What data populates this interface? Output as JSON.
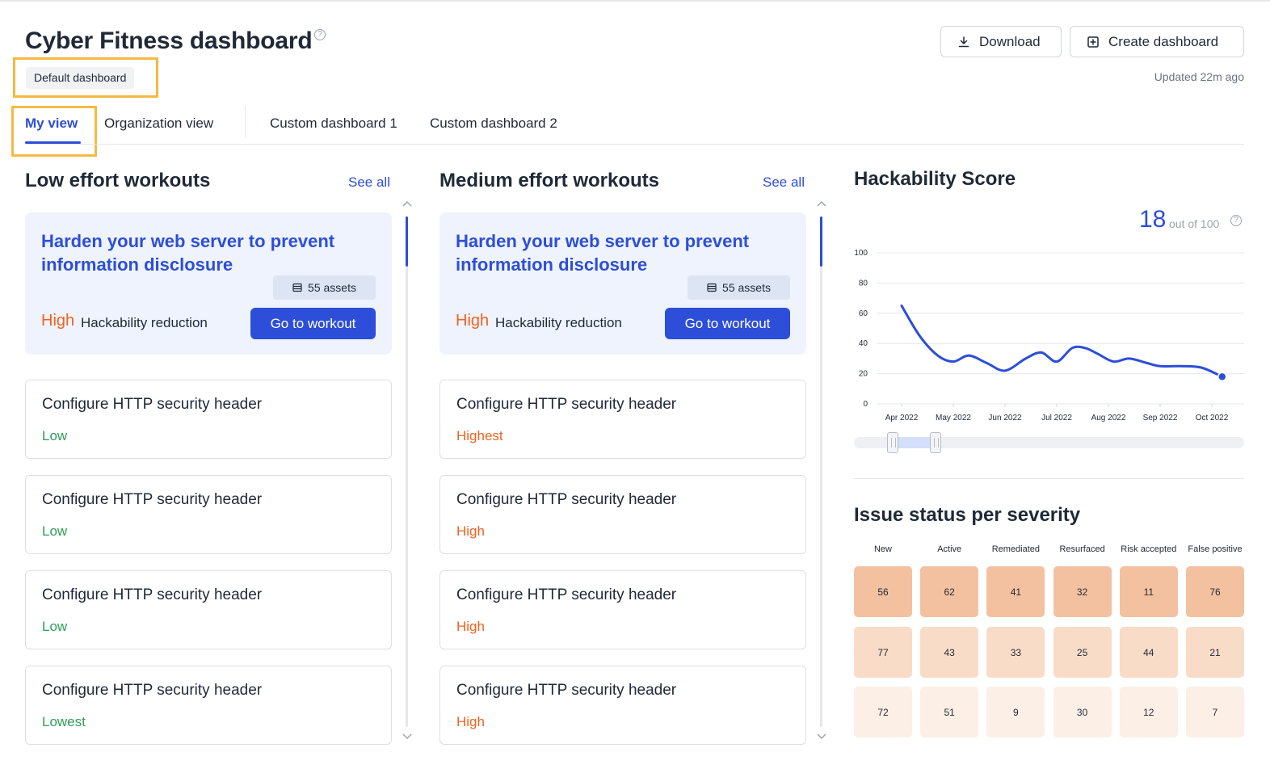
{
  "header": {
    "title": "Cyber Fitness dashboard",
    "badge": "Default dashboard",
    "download_label": "Download",
    "create_label": "Create dashboard",
    "updated": "Updated 22m ago"
  },
  "tabs": [
    {
      "label": "My view",
      "active": true
    },
    {
      "label": "Organization view",
      "active": false
    },
    {
      "label": "Custom dashboard 1",
      "active": false
    },
    {
      "label": "Custom dashboard 2",
      "active": false
    }
  ],
  "low_effort": {
    "title": "Low effort workouts",
    "see_all": "See all",
    "featured": {
      "title": "Harden your web server to prevent information disclosure",
      "assets": "55 assets",
      "level": "High",
      "reduction_label": "Hackability reduction",
      "button": "Go to workout"
    },
    "cards": [
      {
        "title": "Configure HTTP security header",
        "level": "Low"
      },
      {
        "title": "Configure HTTP security header",
        "level": "Low"
      },
      {
        "title": "Configure HTTP security header",
        "level": "Low"
      },
      {
        "title": "Configure HTTP security header",
        "level": "Lowest"
      }
    ]
  },
  "medium_effort": {
    "title": "Medium effort workouts",
    "see_all": "See all",
    "featured": {
      "title": "Harden your web server to prevent information disclosure",
      "assets": "55 assets",
      "level": "High",
      "reduction_label": "Hackability reduction",
      "button": "Go to workout"
    },
    "cards": [
      {
        "title": "Configure HTTP security header",
        "level": "Highest"
      },
      {
        "title": "Configure HTTP security header",
        "level": "High"
      },
      {
        "title": "Configure HTTP security header",
        "level": "High"
      },
      {
        "title": "Configure HTTP security header",
        "level": "High"
      }
    ]
  },
  "hackability": {
    "title": "Hackability Score",
    "score": "18",
    "out_of": "out of 100"
  },
  "chart_data": {
    "type": "line",
    "title": "Hackability Score",
    "x_ticks": [
      "Apr 2022",
      "May 2022",
      "Jun 2022",
      "Jul 2022",
      "Aug 2022",
      "Sep 2022",
      "Oct 2022"
    ],
    "y_ticks": [
      0,
      20,
      40,
      60,
      80,
      100
    ],
    "ylim": [
      0,
      100
    ],
    "grid": true,
    "series": [
      {
        "x": [
          0,
          0.35,
          0.7,
          1.0,
          1.3,
          1.65,
          2.0,
          2.4,
          2.7,
          3.0,
          3.3,
          3.55,
          3.8,
          4.1,
          4.4,
          4.75,
          5.0,
          5.4,
          5.8,
          6.2
        ],
        "y": [
          65,
          45,
          32,
          28,
          32,
          27,
          22,
          30,
          34,
          28,
          37,
          37,
          33,
          28,
          30,
          27,
          25,
          25,
          24,
          18
        ]
      }
    ],
    "current_value": 18,
    "range_slider": [
      0.1,
      0.21
    ],
    "color": "#2d4ed8"
  },
  "issues": {
    "title": "Issue status per severity",
    "columns": [
      "New",
      "Active",
      "Remediated",
      "Resurfaced",
      "Risk accepted",
      "False positive"
    ],
    "rows": [
      [
        56,
        62,
        41,
        32,
        11,
        76
      ],
      [
        77,
        43,
        33,
        25,
        44,
        21
      ],
      [
        72,
        51,
        9,
        30,
        12,
        7
      ]
    ],
    "row_colors": [
      "#f3c1a0",
      "#f8dcc8",
      "#fcefe5"
    ]
  },
  "colors": {
    "accent": "#2d4ed8",
    "highlight_border": "#f5b942",
    "level_high": "#f2621f",
    "level_low": "#2e9e55"
  }
}
